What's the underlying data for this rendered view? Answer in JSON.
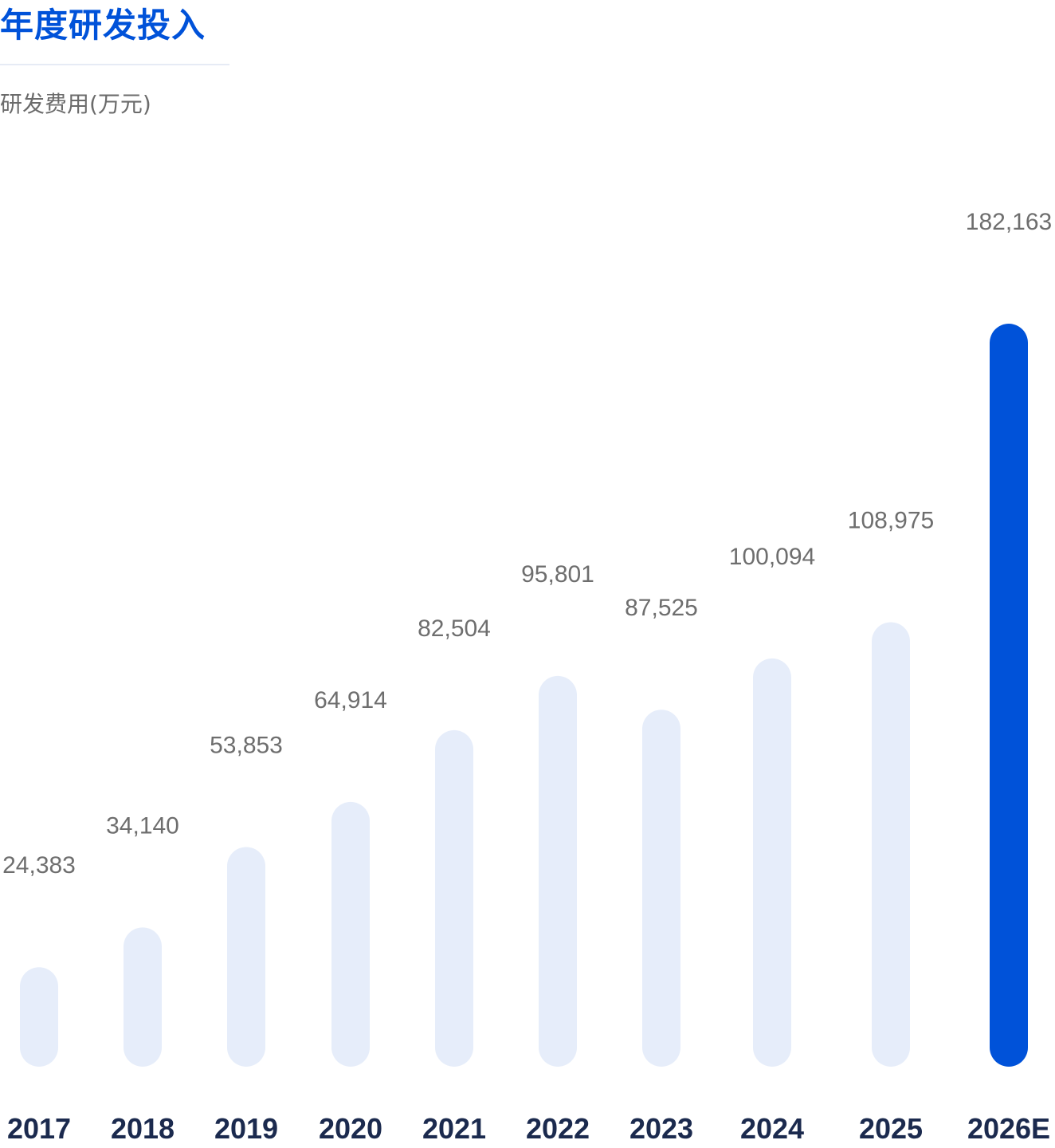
{
  "header": {
    "title": "年度研发投入",
    "unit_label": "研发费用(万元)"
  },
  "colors": {
    "title": "#0052d9",
    "bar": "#e6edfa",
    "highlight_bar": "#0052d9",
    "value_text": "#6e6e6e",
    "category_text": "#1b2a4e"
  },
  "chart_data": {
    "type": "bar",
    "title": "年度研发投入",
    "ylabel": "研发费用(万元)",
    "xlabel": "",
    "categories": [
      "2017",
      "2018",
      "2019",
      "2020",
      "2021",
      "2022",
      "2023",
      "2024",
      "2025",
      "2026E"
    ],
    "values": [
      24383,
      34140,
      53853,
      64914,
      82504,
      95801,
      87525,
      100094,
      108975,
      182163
    ],
    "value_labels": [
      "24,383",
      "34,140",
      "53,853",
      "64,914",
      "82,504",
      "95,801",
      "87,525",
      "100,094",
      "108,975",
      "182,163"
    ],
    "highlight_category": "2026E",
    "grid": false,
    "legend": "none"
  }
}
